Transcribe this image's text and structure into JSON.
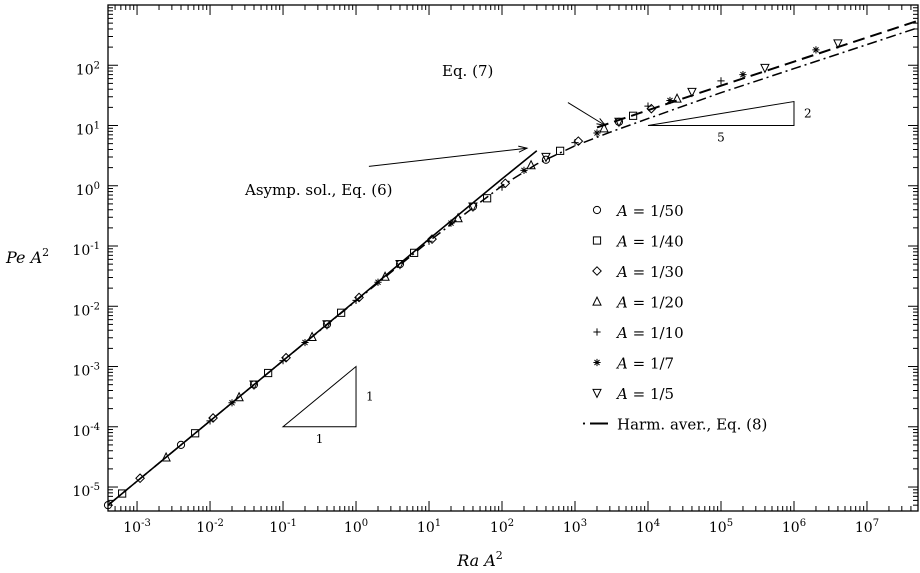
{
  "chart_data": {
    "type": "scatter",
    "x_scale": "log",
    "y_scale": "log",
    "xlim": [
      0.0004,
      50000000
    ],
    "ylim": [
      4e-06,
      1000
    ],
    "xlabel": "Ra A",
    "ylabel": "Pe A",
    "label_exponent": "2",
    "x_ticks": [
      {
        "value": 0.001,
        "base": "10",
        "exp": "-3"
      },
      {
        "value": 0.01,
        "base": "10",
        "exp": "-2"
      },
      {
        "value": 0.1,
        "base": "10",
        "exp": "-1"
      },
      {
        "value": 1,
        "base": "10",
        "exp": "0"
      },
      {
        "value": 10,
        "base": "10",
        "exp": "1"
      },
      {
        "value": 100,
        "base": "10",
        "exp": "2"
      },
      {
        "value": 1000,
        "base": "10",
        "exp": "3"
      },
      {
        "value": 10000,
        "base": "10",
        "exp": "4"
      },
      {
        "value": 100000,
        "base": "10",
        "exp": "5"
      },
      {
        "value": 1000000,
        "base": "10",
        "exp": "6"
      },
      {
        "value": 10000000,
        "base": "10",
        "exp": "7"
      }
    ],
    "y_ticks": [
      {
        "value": 1e-05,
        "base": "10",
        "exp": "-5"
      },
      {
        "value": 0.0001,
        "base": "10",
        "exp": "-4"
      },
      {
        "value": 0.001,
        "base": "10",
        "exp": "-3"
      },
      {
        "value": 0.01,
        "base": "10",
        "exp": "-2"
      },
      {
        "value": 0.1,
        "base": "10",
        "exp": "-1"
      },
      {
        "value": 1,
        "base": "10",
        "exp": "0"
      },
      {
        "value": 10,
        "base": "10",
        "exp": "1"
      },
      {
        "value": 100,
        "base": "10",
        "exp": "2"
      }
    ],
    "series": [
      {
        "name": "A = 1/50",
        "marker": "circle",
        "x": [
          0.0004,
          0.004,
          0.04,
          0.4,
          4,
          40,
          400,
          4000
        ],
        "y": [
          5e-06,
          5e-05,
          0.0005,
          0.005,
          0.05,
          0.45,
          2.7,
          11.5
        ]
      },
      {
        "name": "A = 1/40",
        "marker": "square",
        "x": [
          0.000625,
          0.00625,
          0.0625,
          0.625,
          6.25,
          62.5,
          625,
          6250
        ],
        "y": [
          7.8e-06,
          7.8e-05,
          0.00078,
          0.0078,
          0.077,
          0.62,
          3.8,
          14.5
        ]
      },
      {
        "name": "A = 1/30",
        "marker": "diamond",
        "x": [
          0.0011,
          0.011,
          0.11,
          1.1,
          11,
          111,
          1111,
          11111
        ],
        "y": [
          1.4e-05,
          0.00014,
          0.0014,
          0.014,
          0.13,
          1.1,
          5.5,
          19
        ]
      },
      {
        "name": "A = 1/20",
        "marker": "triangle",
        "x": [
          0.0025,
          0.025,
          0.25,
          2.5,
          25,
          250,
          2500,
          25000
        ],
        "y": [
          3.1e-05,
          0.00031,
          0.0031,
          0.031,
          0.29,
          2.2,
          9,
          28
        ]
      },
      {
        "name": "A = 1/10",
        "marker": "plus",
        "x": [
          0.01,
          0.1,
          1,
          10,
          100,
          1000,
          10000,
          100000
        ],
        "y": [
          0.000125,
          0.00125,
          0.0125,
          0.12,
          0.95,
          5.2,
          21,
          55
        ]
      },
      {
        "name": "A = 1/7",
        "marker": "star",
        "x": [
          0.02,
          0.2,
          2,
          20,
          200,
          2000,
          20000,
          200000,
          2000000
        ],
        "y": [
          0.00025,
          0.0025,
          0.025,
          0.24,
          1.8,
          7.5,
          26,
          70,
          180
        ]
      },
      {
        "name": "A = 1/5",
        "marker": "triangle-down",
        "x": [
          0.04,
          0.4,
          4,
          40,
          400,
          4000,
          40000,
          400000,
          4000000
        ],
        "y": [
          0.0005,
          0.005,
          0.05,
          0.45,
          3,
          11.5,
          36,
          90,
          230
        ]
      }
    ],
    "curves": [
      {
        "name": "Asymp. sol., Eq. (6)",
        "style": "solid",
        "x": [
          0.0004,
          1,
          10,
          100,
          300
        ],
        "y": [
          5e-06,
          0.0125,
          0.13,
          1.3,
          3.8
        ]
      },
      {
        "name": "Eq. (7)",
        "style": "dashed",
        "x": [
          2000,
          100000,
          50000000
        ],
        "y": [
          9.3,
          45.7,
          548
        ]
      },
      {
        "name": "Harm. aver., Eq. (8)",
        "style": "dashdot",
        "x": [
          0.0004,
          0.1,
          10,
          100,
          300,
          1000,
          3000,
          10000,
          100000,
          1000000,
          10000000,
          50000000
        ],
        "y": [
          5e-06,
          0.00125,
          0.12,
          1,
          2.3,
          4.6,
          7.7,
          13,
          35,
          88,
          220,
          420
        ]
      }
    ],
    "annotations": [
      {
        "text": "Eq. (7)",
        "arrow_from": [
          800,
          24
        ],
        "arrow_to": [
          2600,
          10
        ]
      },
      {
        "text": "Asymp. sol., Eq. (6)",
        "arrow_from": [
          1.5,
          2.1
        ],
        "arrow_to": [
          220,
          4.2
        ]
      }
    ],
    "slope_triangles": [
      {
        "x_from": 0.1,
        "x_to": 1,
        "y_from": 0.0001,
        "y_to": 0.001,
        "run_label": "1",
        "rise_label": "1"
      },
      {
        "x_from": 10000,
        "x_to": 1000000,
        "y_from": 10,
        "y_to": 25,
        "run_label": "5",
        "rise_label": "2"
      }
    ],
    "legend_position": "center-right",
    "grid": false
  }
}
